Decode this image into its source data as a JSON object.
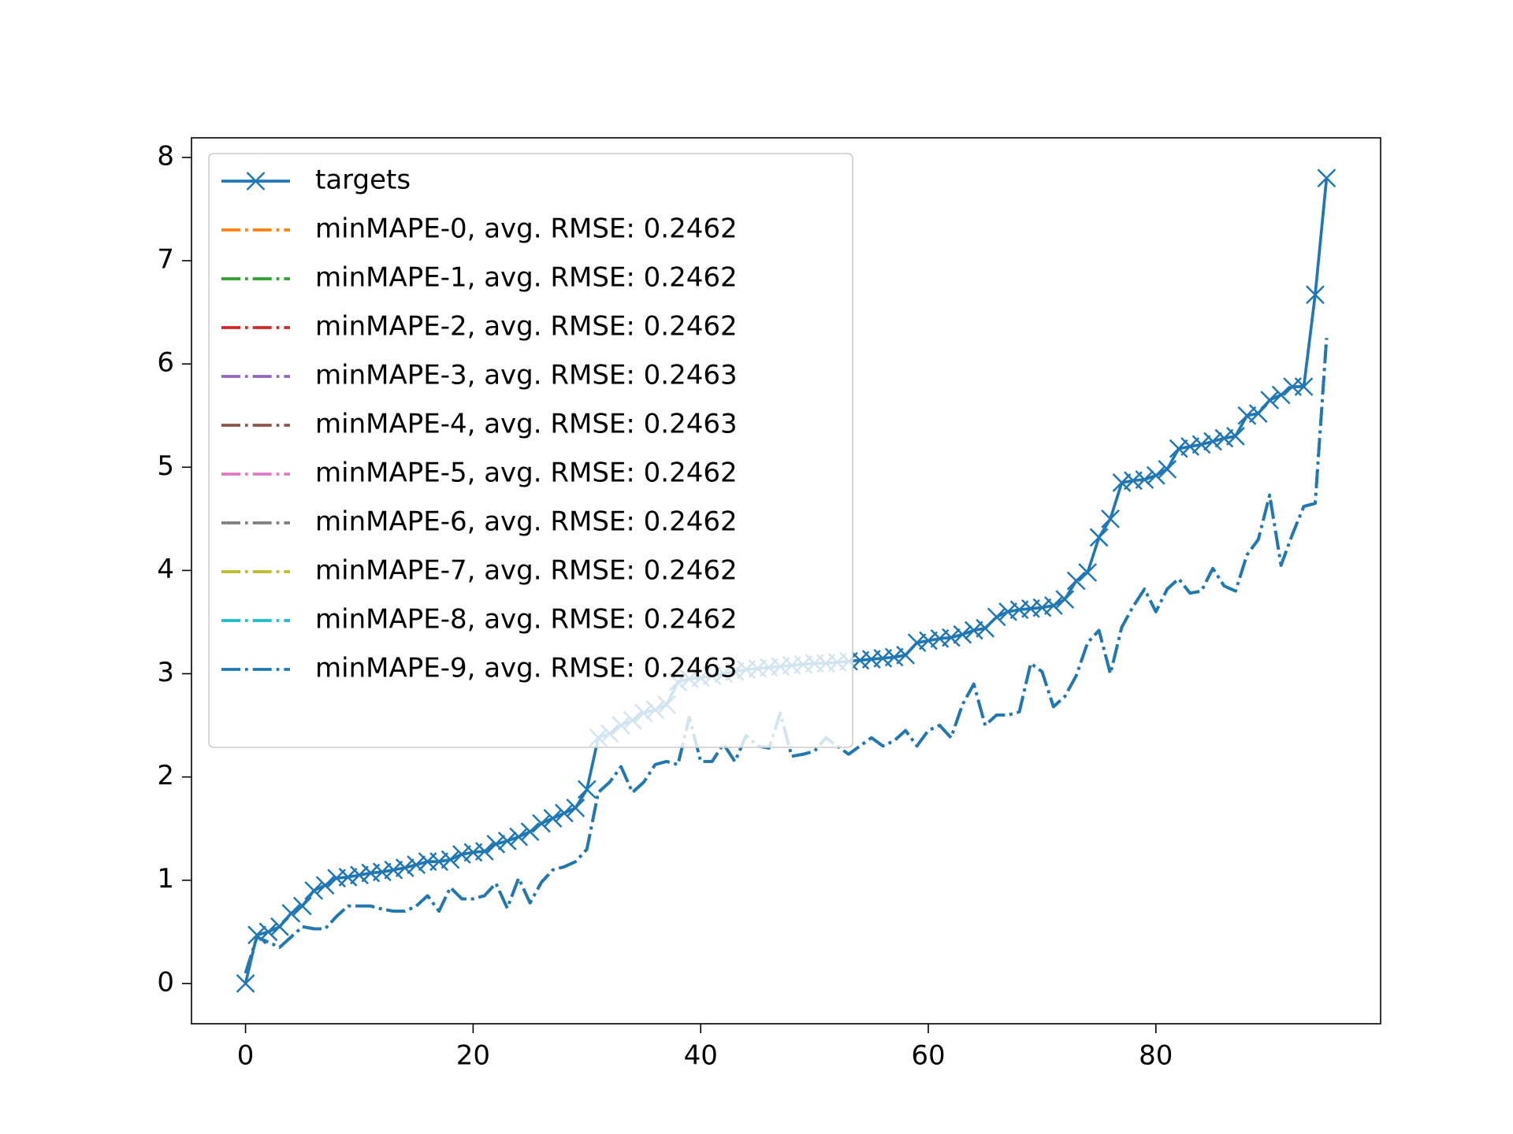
{
  "chart_data": {
    "type": "line",
    "x": [
      0,
      1,
      2,
      3,
      4,
      5,
      6,
      7,
      8,
      9,
      10,
      11,
      12,
      13,
      14,
      15,
      16,
      17,
      18,
      19,
      20,
      21,
      22,
      23,
      24,
      25,
      26,
      27,
      28,
      29,
      30,
      31,
      32,
      33,
      34,
      35,
      36,
      37,
      38,
      39,
      40,
      41,
      42,
      43,
      44,
      45,
      46,
      47,
      48,
      49,
      50,
      51,
      52,
      53,
      54,
      55,
      56,
      57,
      58,
      59,
      60,
      61,
      62,
      63,
      64,
      65,
      66,
      67,
      68,
      69,
      70,
      71,
      72,
      73,
      74,
      75,
      76,
      77,
      78,
      79,
      80,
      81,
      82,
      83,
      84,
      85,
      86,
      87,
      88,
      89,
      90,
      91,
      92,
      93,
      94,
      95
    ],
    "series": [
      {
        "name": "targets",
        "color": "#1f77b4",
        "marker": "x",
        "linestyle": "solid",
        "values": [
          0,
          0.47,
          0.5,
          0.55,
          0.68,
          0.75,
          0.9,
          0.95,
          1.02,
          1.03,
          1.05,
          1.07,
          1.08,
          1.1,
          1.12,
          1.15,
          1.18,
          1.18,
          1.2,
          1.25,
          1.27,
          1.28,
          1.35,
          1.38,
          1.42,
          1.47,
          1.55,
          1.6,
          1.65,
          1.7,
          1.88,
          2.38,
          2.42,
          2.5,
          2.55,
          2.62,
          2.65,
          2.7,
          2.92,
          2.95,
          2.96,
          2.98,
          3.0,
          3.02,
          3.04,
          3.05,
          3.06,
          3.07,
          3.08,
          3.09,
          3.1,
          3.1,
          3.11,
          3.12,
          3.13,
          3.14,
          3.15,
          3.16,
          3.18,
          3.3,
          3.32,
          3.34,
          3.35,
          3.38,
          3.42,
          3.44,
          3.55,
          3.6,
          3.62,
          3.63,
          3.64,
          3.66,
          3.72,
          3.9,
          3.98,
          4.32,
          4.5,
          4.85,
          4.87,
          4.88,
          4.92,
          4.98,
          5.18,
          5.2,
          5.22,
          5.25,
          5.28,
          5.3,
          5.5,
          5.52,
          5.65,
          5.7,
          5.78,
          5.78,
          6.67,
          7.8
        ]
      },
      {
        "name": "minMAPE-0, avg. RMSE: 0.2462",
        "color": "#ff7f0e",
        "linestyle": "dashdot",
        "values": [
          0.1,
          0.45,
          0.4,
          0.35,
          0.45,
          0.55,
          0.53,
          0.53,
          0.65,
          0.75,
          0.75,
          0.75,
          0.72,
          0.7,
          0.7,
          0.75,
          0.85,
          0.7,
          0.93,
          0.82,
          0.82,
          0.85,
          0.97,
          0.73,
          1.02,
          0.78,
          0.98,
          1.1,
          1.13,
          1.18,
          1.3,
          1.85,
          1.95,
          2.1,
          1.85,
          1.95,
          2.12,
          2.15,
          2.12,
          2.58,
          2.15,
          2.15,
          2.32,
          2.15,
          2.4,
          2.3,
          2.28,
          2.62,
          2.2,
          2.22,
          2.25,
          2.38,
          2.3,
          2.22,
          2.3,
          2.38,
          2.3,
          2.35,
          2.45,
          2.3,
          2.45,
          2.5,
          2.38,
          2.7,
          2.9,
          2.5,
          2.6,
          2.6,
          2.63,
          3.1,
          3.02,
          2.68,
          2.78,
          2.98,
          3.3,
          3.42,
          3.0,
          3.45,
          3.65,
          3.82,
          3.6,
          3.82,
          3.92,
          3.78,
          3.8,
          4.02,
          3.85,
          3.8,
          4.15,
          4.3,
          4.73,
          4.05,
          4.35,
          4.62,
          4.65,
          6.25
        ]
      },
      {
        "name": "minMAPE-1, avg. RMSE: 0.2462",
        "color": "#2ca02c",
        "linestyle": "dashdot",
        "values": [
          0.1,
          0.45,
          0.4,
          0.35,
          0.45,
          0.55,
          0.53,
          0.53,
          0.65,
          0.75,
          0.75,
          0.75,
          0.72,
          0.7,
          0.7,
          0.75,
          0.85,
          0.7,
          0.93,
          0.82,
          0.82,
          0.85,
          0.97,
          0.73,
          1.02,
          0.78,
          0.98,
          1.1,
          1.13,
          1.18,
          1.3,
          1.85,
          1.95,
          2.1,
          1.85,
          1.95,
          2.12,
          2.15,
          2.12,
          2.58,
          2.15,
          2.15,
          2.32,
          2.15,
          2.4,
          2.3,
          2.28,
          2.62,
          2.2,
          2.22,
          2.25,
          2.38,
          2.3,
          2.22,
          2.3,
          2.38,
          2.3,
          2.35,
          2.45,
          2.3,
          2.45,
          2.5,
          2.38,
          2.7,
          2.9,
          2.5,
          2.6,
          2.6,
          2.63,
          3.1,
          3.02,
          2.68,
          2.78,
          2.98,
          3.3,
          3.42,
          3.0,
          3.45,
          3.65,
          3.82,
          3.6,
          3.82,
          3.92,
          3.78,
          3.8,
          4.02,
          3.85,
          3.8,
          4.15,
          4.3,
          4.73,
          4.05,
          4.35,
          4.62,
          4.65,
          6.25
        ]
      },
      {
        "name": "minMAPE-2, avg. RMSE: 0.2462",
        "color": "#d62728",
        "linestyle": "dashdot",
        "values": [
          0.1,
          0.45,
          0.4,
          0.35,
          0.45,
          0.55,
          0.53,
          0.53,
          0.65,
          0.75,
          0.75,
          0.75,
          0.72,
          0.7,
          0.7,
          0.75,
          0.85,
          0.7,
          0.93,
          0.82,
          0.82,
          0.85,
          0.97,
          0.73,
          1.02,
          0.78,
          0.98,
          1.1,
          1.13,
          1.18,
          1.3,
          1.85,
          1.95,
          2.1,
          1.85,
          1.95,
          2.12,
          2.15,
          2.12,
          2.58,
          2.15,
          2.15,
          2.32,
          2.15,
          2.4,
          2.3,
          2.28,
          2.62,
          2.2,
          2.22,
          2.25,
          2.38,
          2.3,
          2.22,
          2.3,
          2.38,
          2.3,
          2.35,
          2.45,
          2.3,
          2.45,
          2.5,
          2.38,
          2.7,
          2.9,
          2.5,
          2.6,
          2.6,
          2.63,
          3.1,
          3.02,
          2.68,
          2.78,
          2.98,
          3.3,
          3.42,
          3.0,
          3.45,
          3.65,
          3.82,
          3.6,
          3.82,
          3.92,
          3.78,
          3.8,
          4.02,
          3.85,
          3.8,
          4.15,
          4.3,
          4.73,
          4.05,
          4.35,
          4.62,
          4.65,
          6.25
        ]
      },
      {
        "name": "minMAPE-3, avg. RMSE: 0.2463",
        "color": "#9467bd",
        "linestyle": "dashdot",
        "values": [
          0.1,
          0.45,
          0.4,
          0.35,
          0.45,
          0.55,
          0.53,
          0.53,
          0.65,
          0.75,
          0.75,
          0.75,
          0.72,
          0.7,
          0.7,
          0.75,
          0.85,
          0.7,
          0.93,
          0.82,
          0.82,
          0.85,
          0.97,
          0.73,
          1.02,
          0.78,
          0.98,
          1.1,
          1.13,
          1.18,
          1.3,
          1.85,
          1.95,
          2.1,
          1.85,
          1.95,
          2.12,
          2.15,
          2.12,
          2.58,
          2.15,
          2.15,
          2.32,
          2.15,
          2.4,
          2.3,
          2.28,
          2.62,
          2.2,
          2.22,
          2.25,
          2.38,
          2.3,
          2.22,
          2.3,
          2.38,
          2.3,
          2.35,
          2.45,
          2.3,
          2.45,
          2.5,
          2.38,
          2.7,
          2.9,
          2.5,
          2.6,
          2.6,
          2.63,
          3.1,
          3.02,
          2.68,
          2.78,
          2.98,
          3.3,
          3.42,
          3.0,
          3.45,
          3.65,
          3.82,
          3.6,
          3.82,
          3.92,
          3.78,
          3.8,
          4.02,
          3.85,
          3.8,
          4.15,
          4.3,
          4.73,
          4.05,
          4.35,
          4.62,
          4.65,
          6.25
        ]
      },
      {
        "name": "minMAPE-4, avg. RMSE: 0.2463",
        "color": "#8c564b",
        "linestyle": "dashdot",
        "values": [
          0.1,
          0.45,
          0.4,
          0.35,
          0.45,
          0.55,
          0.53,
          0.53,
          0.65,
          0.75,
          0.75,
          0.75,
          0.72,
          0.7,
          0.7,
          0.75,
          0.85,
          0.7,
          0.93,
          0.82,
          0.82,
          0.85,
          0.97,
          0.73,
          1.02,
          0.78,
          0.98,
          1.1,
          1.13,
          1.18,
          1.3,
          1.85,
          1.95,
          2.1,
          1.85,
          1.95,
          2.12,
          2.15,
          2.12,
          2.58,
          2.15,
          2.15,
          2.32,
          2.15,
          2.4,
          2.3,
          2.28,
          2.62,
          2.2,
          2.22,
          2.25,
          2.38,
          2.3,
          2.22,
          2.3,
          2.38,
          2.3,
          2.35,
          2.45,
          2.3,
          2.45,
          2.5,
          2.38,
          2.7,
          2.9,
          2.5,
          2.6,
          2.6,
          2.63,
          3.1,
          3.02,
          2.68,
          2.78,
          2.98,
          3.3,
          3.42,
          3.0,
          3.45,
          3.65,
          3.82,
          3.6,
          3.82,
          3.92,
          3.78,
          3.8,
          4.02,
          3.85,
          3.8,
          4.15,
          4.3,
          4.73,
          4.05,
          4.35,
          4.62,
          4.65,
          6.25
        ]
      },
      {
        "name": "minMAPE-5, avg. RMSE: 0.2462",
        "color": "#e377c2",
        "linestyle": "dashdot",
        "values": [
          0.1,
          0.45,
          0.4,
          0.35,
          0.45,
          0.55,
          0.53,
          0.53,
          0.65,
          0.75,
          0.75,
          0.75,
          0.72,
          0.7,
          0.7,
          0.75,
          0.85,
          0.7,
          0.93,
          0.82,
          0.82,
          0.85,
          0.97,
          0.73,
          1.02,
          0.78,
          0.98,
          1.1,
          1.13,
          1.18,
          1.3,
          1.85,
          1.95,
          2.1,
          1.85,
          1.95,
          2.12,
          2.15,
          2.12,
          2.58,
          2.15,
          2.15,
          2.32,
          2.15,
          2.4,
          2.3,
          2.28,
          2.62,
          2.2,
          2.22,
          2.25,
          2.38,
          2.3,
          2.22,
          2.3,
          2.38,
          2.3,
          2.35,
          2.45,
          2.3,
          2.45,
          2.5,
          2.38,
          2.7,
          2.9,
          2.5,
          2.6,
          2.6,
          2.63,
          3.1,
          3.02,
          2.68,
          2.78,
          2.98,
          3.3,
          3.42,
          3.0,
          3.45,
          3.65,
          3.82,
          3.6,
          3.82,
          3.92,
          3.78,
          3.8,
          4.02,
          3.85,
          3.8,
          4.15,
          4.3,
          4.73,
          4.05,
          4.35,
          4.62,
          4.65,
          6.25
        ]
      },
      {
        "name": "minMAPE-6, avg. RMSE: 0.2462",
        "color": "#7f7f7f",
        "linestyle": "dashdot",
        "values": [
          0.1,
          0.45,
          0.4,
          0.35,
          0.45,
          0.55,
          0.53,
          0.53,
          0.65,
          0.75,
          0.75,
          0.75,
          0.72,
          0.7,
          0.7,
          0.75,
          0.85,
          0.7,
          0.93,
          0.82,
          0.82,
          0.85,
          0.97,
          0.73,
          1.02,
          0.78,
          0.98,
          1.1,
          1.13,
          1.18,
          1.3,
          1.85,
          1.95,
          2.1,
          1.85,
          1.95,
          2.12,
          2.15,
          2.12,
          2.58,
          2.15,
          2.15,
          2.32,
          2.15,
          2.4,
          2.3,
          2.28,
          2.62,
          2.2,
          2.22,
          2.25,
          2.38,
          2.3,
          2.22,
          2.3,
          2.38,
          2.3,
          2.35,
          2.45,
          2.3,
          2.45,
          2.5,
          2.38,
          2.7,
          2.9,
          2.5,
          2.6,
          2.6,
          2.63,
          3.1,
          3.02,
          2.68,
          2.78,
          2.98,
          3.3,
          3.42,
          3.0,
          3.45,
          3.65,
          3.82,
          3.6,
          3.82,
          3.92,
          3.78,
          3.8,
          4.02,
          3.85,
          3.8,
          4.15,
          4.3,
          4.73,
          4.05,
          4.35,
          4.62,
          4.65,
          6.25
        ]
      },
      {
        "name": "minMAPE-7, avg. RMSE: 0.2462",
        "color": "#bcbd22",
        "linestyle": "dashdot",
        "values": [
          0.1,
          0.45,
          0.4,
          0.35,
          0.45,
          0.55,
          0.53,
          0.53,
          0.65,
          0.75,
          0.75,
          0.75,
          0.72,
          0.7,
          0.7,
          0.75,
          0.85,
          0.7,
          0.93,
          0.82,
          0.82,
          0.85,
          0.97,
          0.73,
          1.02,
          0.78,
          0.98,
          1.1,
          1.13,
          1.18,
          1.3,
          1.85,
          1.95,
          2.1,
          1.85,
          1.95,
          2.12,
          2.15,
          2.12,
          2.58,
          2.15,
          2.15,
          2.32,
          2.15,
          2.4,
          2.3,
          2.28,
          2.62,
          2.2,
          2.22,
          2.25,
          2.38,
          2.3,
          2.22,
          2.3,
          2.38,
          2.3,
          2.35,
          2.45,
          2.3,
          2.45,
          2.5,
          2.38,
          2.7,
          2.9,
          2.5,
          2.6,
          2.6,
          2.63,
          3.1,
          3.02,
          2.68,
          2.78,
          2.98,
          3.3,
          3.42,
          3.0,
          3.45,
          3.65,
          3.82,
          3.6,
          3.82,
          3.92,
          3.78,
          3.8,
          4.02,
          3.85,
          3.8,
          4.15,
          4.3,
          4.73,
          4.05,
          4.35,
          4.62,
          4.65,
          6.25
        ]
      },
      {
        "name": "minMAPE-8, avg. RMSE: 0.2462",
        "color": "#17becf",
        "linestyle": "dashdot",
        "values": [
          0.1,
          0.45,
          0.4,
          0.35,
          0.45,
          0.55,
          0.53,
          0.53,
          0.65,
          0.75,
          0.75,
          0.75,
          0.72,
          0.7,
          0.7,
          0.75,
          0.85,
          0.7,
          0.93,
          0.82,
          0.82,
          0.85,
          0.97,
          0.73,
          1.02,
          0.78,
          0.98,
          1.1,
          1.13,
          1.18,
          1.3,
          1.85,
          1.95,
          2.1,
          1.85,
          1.95,
          2.12,
          2.15,
          2.12,
          2.58,
          2.15,
          2.15,
          2.32,
          2.15,
          2.4,
          2.3,
          2.28,
          2.62,
          2.2,
          2.22,
          2.25,
          2.38,
          2.3,
          2.22,
          2.3,
          2.38,
          2.3,
          2.35,
          2.45,
          2.3,
          2.45,
          2.5,
          2.38,
          2.7,
          2.9,
          2.5,
          2.6,
          2.6,
          2.63,
          3.1,
          3.02,
          2.68,
          2.78,
          2.98,
          3.3,
          3.42,
          3.0,
          3.45,
          3.65,
          3.82,
          3.6,
          3.82,
          3.92,
          3.78,
          3.8,
          4.02,
          3.85,
          3.8,
          4.15,
          4.3,
          4.73,
          4.05,
          4.35,
          4.62,
          4.65,
          6.25
        ]
      },
      {
        "name": "minMAPE-9, avg. RMSE: 0.2463",
        "color": "#1f77b4",
        "linestyle": "dashdot",
        "values": [
          0.1,
          0.45,
          0.4,
          0.35,
          0.45,
          0.55,
          0.53,
          0.53,
          0.65,
          0.75,
          0.75,
          0.75,
          0.72,
          0.7,
          0.7,
          0.75,
          0.85,
          0.7,
          0.93,
          0.82,
          0.82,
          0.85,
          0.97,
          0.73,
          1.02,
          0.78,
          0.98,
          1.1,
          1.13,
          1.18,
          1.3,
          1.85,
          1.95,
          2.1,
          1.85,
          1.95,
          2.12,
          2.15,
          2.12,
          2.58,
          2.15,
          2.15,
          2.32,
          2.15,
          2.4,
          2.3,
          2.28,
          2.62,
          2.2,
          2.22,
          2.25,
          2.38,
          2.3,
          2.22,
          2.3,
          2.38,
          2.3,
          2.35,
          2.45,
          2.3,
          2.45,
          2.5,
          2.38,
          2.7,
          2.9,
          2.5,
          2.6,
          2.6,
          2.63,
          3.1,
          3.02,
          2.68,
          2.78,
          2.98,
          3.3,
          3.42,
          3.0,
          3.45,
          3.65,
          3.82,
          3.6,
          3.82,
          3.92,
          3.78,
          3.8,
          4.02,
          3.85,
          3.8,
          4.15,
          4.3,
          4.73,
          4.05,
          4.35,
          4.62,
          4.65,
          6.25
        ]
      }
    ],
    "xlim": [
      -4.75,
      99.75
    ],
    "ylim": [
      -0.39,
      8.19
    ],
    "xticks": [
      0,
      20,
      40,
      60,
      80
    ],
    "yticks": [
      0,
      1,
      2,
      3,
      4,
      5,
      6,
      7,
      8
    ],
    "legend": "upper left",
    "grid": false
  }
}
